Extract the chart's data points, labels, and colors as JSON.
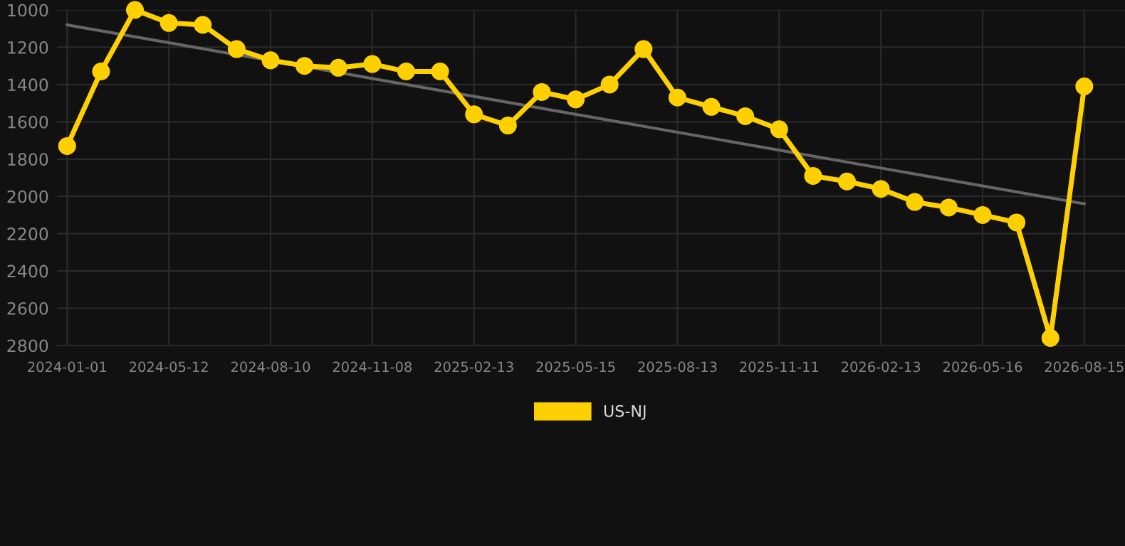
{
  "chart_data": {
    "type": "line",
    "categories": [
      "2024-01-01",
      null,
      null,
      "2024-05-12",
      null,
      null,
      "2024-08-10",
      null,
      null,
      "2024-11-08",
      null,
      null,
      "2025-02-13",
      null,
      null,
      "2025-05-15",
      null,
      null,
      "2025-08-13",
      null,
      null,
      "2025-11-11",
      null,
      null,
      "2026-02-13",
      null,
      null,
      "2026-05-16",
      null,
      null,
      "2026-08-15"
    ],
    "series": [
      {
        "name": "US-NJ",
        "color": "#ffd000",
        "marker": "circle",
        "values": [
          1730,
          1330,
          1000,
          1070,
          1080,
          1210,
          1270,
          1300,
          1310,
          1290,
          1330,
          1330,
          1560,
          1620,
          1440,
          1480,
          1400,
          1210,
          1470,
          1520,
          1570,
          1640,
          1890,
          1920,
          1960,
          2030,
          2060,
          2100,
          2140,
          2760,
          1410
        ]
      },
      {
        "color": "#666666",
        "marker": "none",
        "values": [
          1080,
          null,
          null,
          null,
          null,
          null,
          null,
          null,
          null,
          null,
          null,
          null,
          null,
          null,
          null,
          null,
          null,
          null,
          null,
          null,
          null,
          null,
          null,
          null,
          null,
          null,
          null,
          null,
          null,
          null,
          2040
        ]
      }
    ],
    "ylim": [
      2800,
      1000
    ],
    "yticks": [
      1000,
      1200,
      1400,
      1600,
      1800,
      2000,
      2200,
      2400,
      2600,
      2800
    ],
    "grid": true,
    "legend": "bottom",
    "line_style": "solid"
  }
}
